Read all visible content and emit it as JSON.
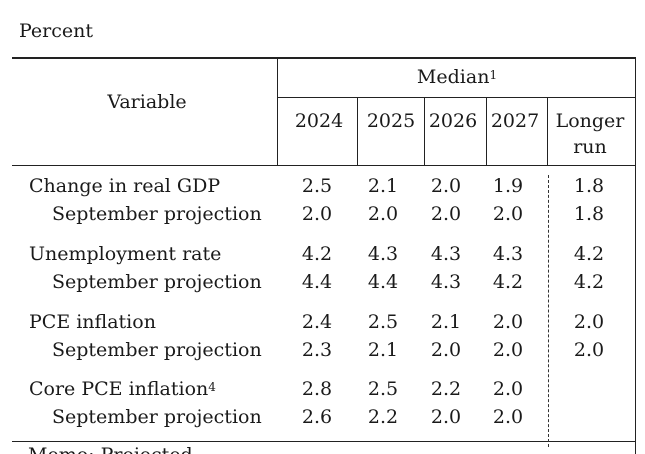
{
  "unit_label": "Percent",
  "header": {
    "variable_label": "Variable",
    "median_label": "Median",
    "median_footnote": "1",
    "years": [
      "2024",
      "2025",
      "2026",
      "2027"
    ],
    "longer_run_line1": "Longer",
    "longer_run_line2": "run"
  },
  "rows": [
    {
      "label": "Change in real GDP",
      "footnote": "",
      "values": [
        "2.5",
        "2.1",
        "2.0",
        "1.9",
        "1.8"
      ]
    },
    {
      "label": "September projection",
      "footnote": "",
      "values": [
        "2.0",
        "2.0",
        "2.0",
        "2.0",
        "1.8"
      ]
    },
    {
      "label": "Unemployment rate",
      "footnote": "",
      "values": [
        "4.2",
        "4.3",
        "4.3",
        "4.3",
        "4.2"
      ]
    },
    {
      "label": "September projection",
      "footnote": "",
      "values": [
        "4.4",
        "4.4",
        "4.3",
        "4.2",
        "4.2"
      ]
    },
    {
      "label": "PCE inflation",
      "footnote": "",
      "values": [
        "2.4",
        "2.5",
        "2.1",
        "2.0",
        "2.0"
      ]
    },
    {
      "label": "September projection",
      "footnote": "",
      "values": [
        "2.3",
        "2.1",
        "2.0",
        "2.0",
        "2.0"
      ]
    },
    {
      "label": "Core PCE inflation",
      "footnote": "4",
      "values": [
        "2.8",
        "2.5",
        "2.2",
        "2.0",
        ""
      ]
    },
    {
      "label": "September projection",
      "footnote": "",
      "values": [
        "2.6",
        "2.2",
        "2.0",
        "2.0",
        ""
      ]
    }
  ],
  "cut_off_label": "Memo: Projected"
}
